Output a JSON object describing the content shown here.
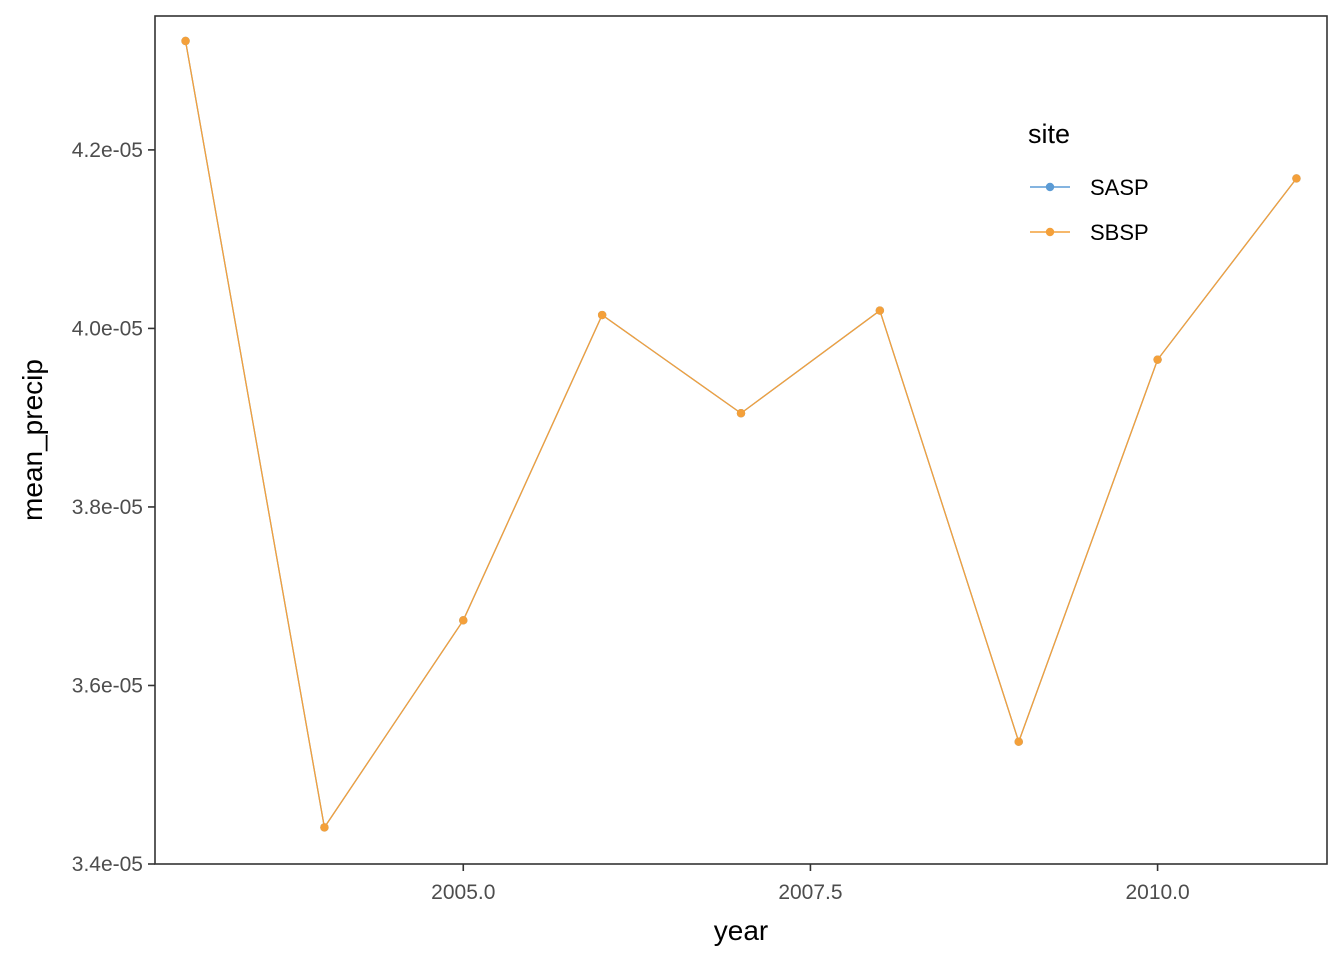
{
  "chart_data": {
    "type": "line",
    "xlabel": "year",
    "ylabel": "mean_precip",
    "xlim": [
      2002.78,
      2011.22
    ],
    "ylim": [
      3.4e-05,
      4.35e-05
    ],
    "x_ticks": [
      2005.0,
      2007.5,
      2010.0
    ],
    "x_tick_labels": [
      "2005.0",
      "2007.5",
      "2010.0"
    ],
    "y_ticks": [
      3.4e-05,
      3.6e-05,
      3.8e-05,
      4e-05,
      4.2e-05
    ],
    "y_tick_labels": [
      "3.4e-05",
      "3.6e-05",
      "3.8e-05",
      "4.0e-05",
      "4.2e-05"
    ],
    "grid": false,
    "legend": {
      "title": "site",
      "placement": "top-right inside"
    },
    "x": [
      2003,
      2004,
      2005,
      2006,
      2007,
      2008,
      2009,
      2010,
      2011
    ],
    "series": [
      {
        "name": "SASP",
        "color": "#5b9bd5",
        "values": [
          4.322e-05,
          3.441e-05,
          3.673e-05,
          4.015e-05,
          3.905e-05,
          4.02e-05,
          3.537e-05,
          3.965e-05,
          4.168e-05
        ]
      },
      {
        "name": "SBSP",
        "color": "#f4a03a",
        "values": [
          4.322e-05,
          3.441e-05,
          3.673e-05,
          4.015e-05,
          3.905e-05,
          4.02e-05,
          3.537e-05,
          3.965e-05,
          4.168e-05
        ]
      }
    ]
  }
}
